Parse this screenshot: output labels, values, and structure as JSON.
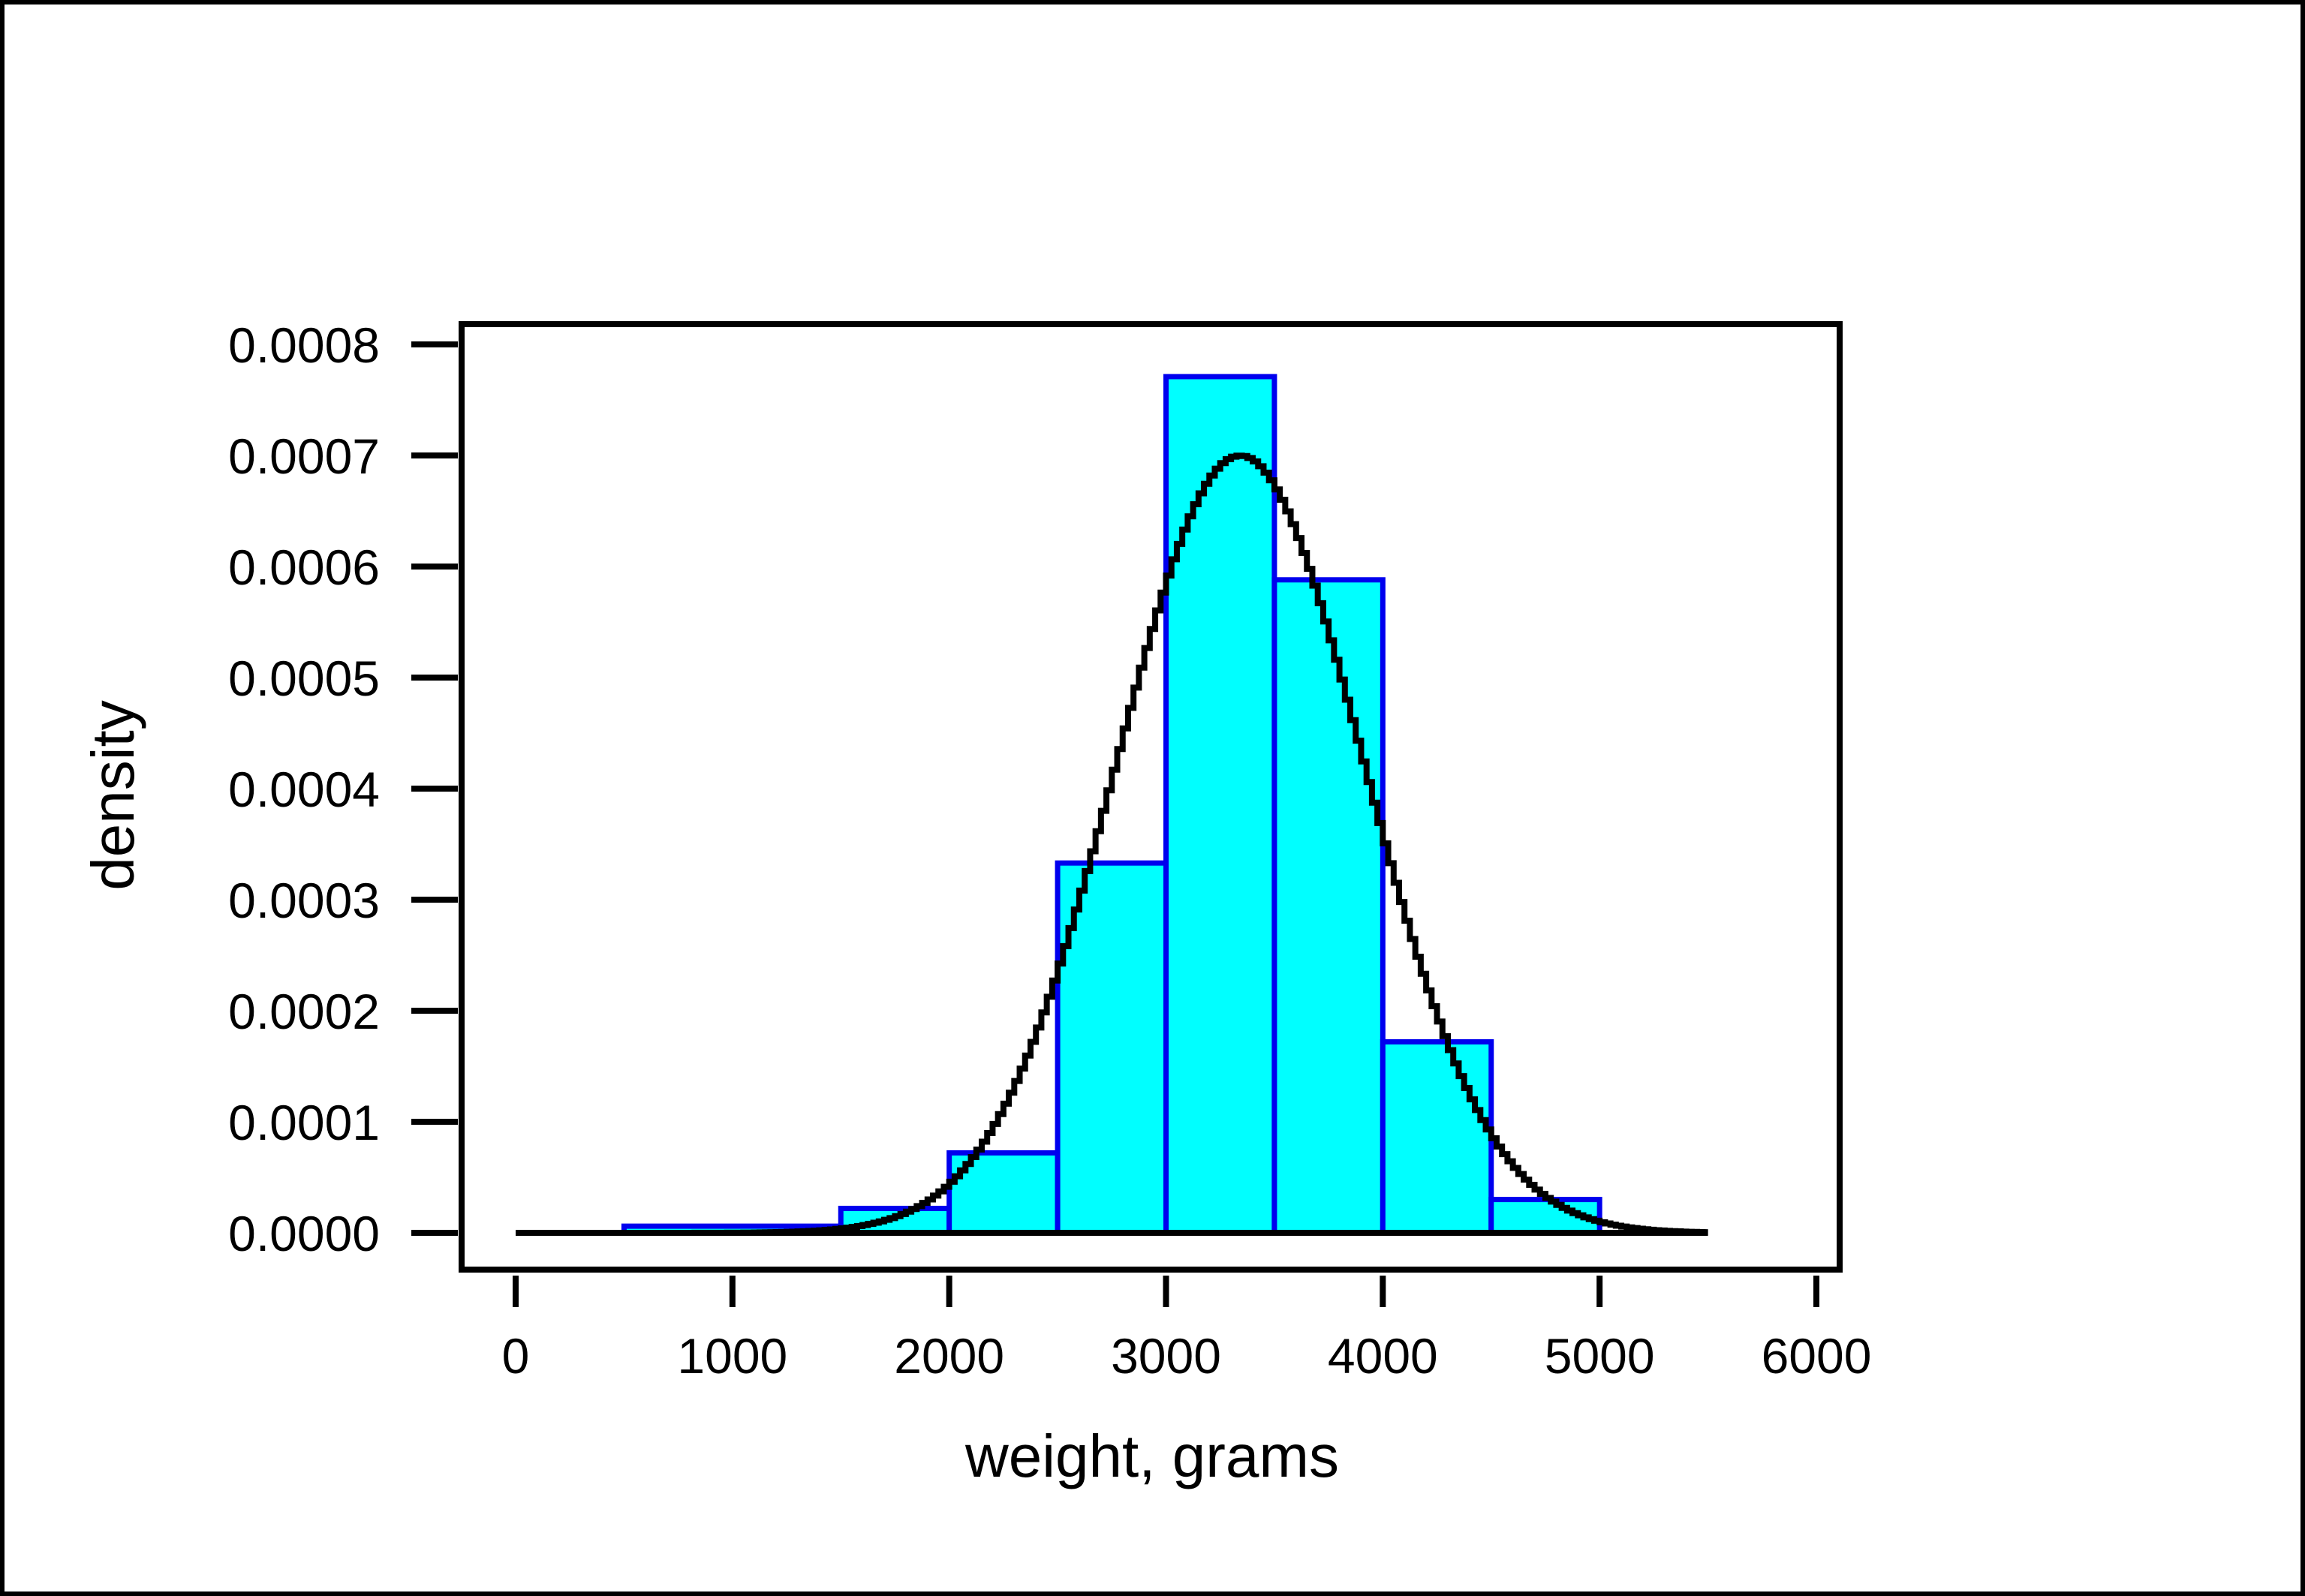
{
  "chart_data": {
    "type": "bar",
    "title": "",
    "xlabel": "weight, grams",
    "ylabel": "density",
    "xlim": [
      -250,
      6000
    ],
    "ylim": [
      0,
      0.00082
    ],
    "x_ticks": [
      0,
      1000,
      2000,
      3000,
      4000,
      5000,
      6000
    ],
    "x_tick_labels": [
      "0",
      "1000",
      "2000",
      "3000",
      "4000",
      "5000",
      "6000"
    ],
    "y_ticks": [
      0,
      0.0001,
      0.0002,
      0.0003,
      0.0004,
      0.0005,
      0.0006,
      0.0007,
      0.0008
    ],
    "y_tick_labels": [
      "0.0000",
      "0.0001",
      "0.0002",
      "0.0003",
      "0.0004",
      "0.0005",
      "0.0006",
      "0.0007",
      "0.0008"
    ],
    "grid": false,
    "legend": "none",
    "bins": [
      {
        "x0": 500,
        "x1": 1500,
        "value": 6e-06
      },
      {
        "x0": 1500,
        "x1": 2000,
        "value": 2.2e-05
      },
      {
        "x0": 2000,
        "x1": 2500,
        "value": 7.2e-05
      },
      {
        "x0": 2500,
        "x1": 3000,
        "value": 0.000333
      },
      {
        "x0": 3000,
        "x1": 3500,
        "value": 0.000771
      },
      {
        "x0": 3500,
        "x1": 4000,
        "value": 0.000588
      },
      {
        "x0": 4000,
        "x1": 4500,
        "value": 0.000172
      },
      {
        "x0": 4500,
        "x1": 5000,
        "value": 3e-05
      }
    ],
    "density_curve": {
      "type": "normal",
      "mean": 3330,
      "sd": 570,
      "x_range": [
        0,
        5500
      ],
      "step": 25
    },
    "colors": {
      "bar_fill": "#00ffff",
      "bar_stroke": "#0000ee",
      "curve": "#000000",
      "axes": "#000000"
    }
  }
}
